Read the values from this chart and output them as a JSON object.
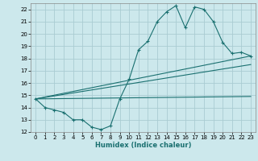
{
  "xlabel": "Humidex (Indice chaleur)",
  "ylabel": "",
  "bg_color": "#cce8ec",
  "grid_color": "#aaccd2",
  "line_color": "#1a7070",
  "xlim": [
    -0.5,
    23.5
  ],
  "ylim": [
    12,
    22.5
  ],
  "yticks": [
    12,
    13,
    14,
    15,
    16,
    17,
    18,
    19,
    20,
    21,
    22
  ],
  "xticks": [
    0,
    1,
    2,
    3,
    4,
    5,
    6,
    7,
    8,
    9,
    10,
    11,
    12,
    13,
    14,
    15,
    16,
    17,
    18,
    19,
    20,
    21,
    22,
    23
  ],
  "line1_x": [
    0,
    1,
    2,
    3,
    4,
    5,
    6,
    7,
    8,
    9,
    10,
    11,
    12,
    13,
    14,
    15,
    16,
    17,
    18,
    19,
    20,
    21,
    22,
    23
  ],
  "line1_y": [
    14.7,
    14.0,
    13.8,
    13.6,
    13.0,
    13.0,
    12.4,
    12.2,
    12.5,
    14.7,
    16.3,
    18.7,
    19.4,
    21.0,
    21.8,
    22.3,
    20.5,
    22.2,
    22.0,
    21.0,
    19.3,
    18.4,
    18.5,
    18.2
  ],
  "line2_x": [
    0,
    23
  ],
  "line2_y": [
    14.7,
    18.2
  ],
  "line3_x": [
    0,
    23
  ],
  "line3_y": [
    14.7,
    17.5
  ],
  "line4_x": [
    0,
    23
  ],
  "line4_y": [
    14.7,
    14.9
  ]
}
